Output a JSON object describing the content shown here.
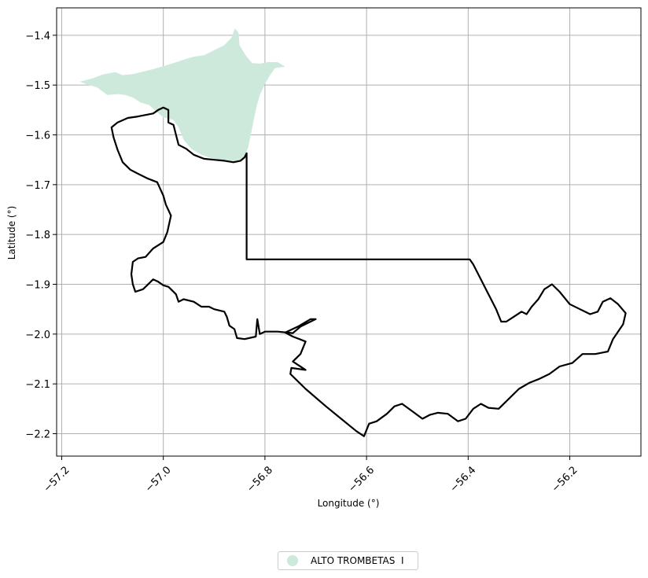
{
  "chart_data": {
    "type": "map",
    "xlabel": "Longitude (°)",
    "ylabel": "Latitude (°)",
    "xlim": [
      -57.21,
      -56.06
    ],
    "ylim": [
      -2.245,
      -1.345
    ],
    "xticks": [
      -57.2,
      -57.0,
      -56.8,
      -56.6,
      -56.4,
      -56.2
    ],
    "xtick_labels": [
      "−57.2",
      "−57.0",
      "−56.8",
      "−56.6",
      "−56.4",
      "−56.2"
    ],
    "yticks": [
      -1.4,
      -1.5,
      -1.6,
      -1.7,
      -1.8,
      -1.9,
      -2.0,
      -2.1,
      -2.2
    ],
    "ytick_labels": [
      "−1.4",
      "−1.5",
      "−1.6",
      "−1.7",
      "−1.8",
      "−1.9",
      "−2.0",
      "−2.1",
      "−2.2"
    ],
    "grid": true,
    "legend_position": "bottom-center",
    "layers": [
      {
        "name": "ALTO TROMBETAS  I",
        "kind": "filled-area",
        "color": "#cde9db",
        "coords": [
          [
            -57.164,
            -1.493
          ],
          [
            -57.14,
            -1.487
          ],
          [
            -57.12,
            -1.479
          ],
          [
            -57.095,
            -1.474
          ],
          [
            -57.08,
            -1.48
          ],
          [
            -57.06,
            -1.478
          ],
          [
            -57.04,
            -1.473
          ],
          [
            -57.02,
            -1.468
          ],
          [
            -57.0,
            -1.462
          ],
          [
            -56.98,
            -1.456
          ],
          [
            -56.96,
            -1.449
          ],
          [
            -56.94,
            -1.443
          ],
          [
            -56.92,
            -1.44
          ],
          [
            -56.9,
            -1.43
          ],
          [
            -56.88,
            -1.42
          ],
          [
            -56.866,
            -1.405
          ],
          [
            -56.859,
            -1.386
          ],
          [
            -56.852,
            -1.395
          ],
          [
            -56.85,
            -1.42
          ],
          [
            -56.838,
            -1.44
          ],
          [
            -56.825,
            -1.456
          ],
          [
            -56.81,
            -1.457
          ],
          [
            -56.795,
            -1.454
          ],
          [
            -56.775,
            -1.454
          ],
          [
            -56.76,
            -1.463
          ],
          [
            -56.78,
            -1.466
          ],
          [
            -56.79,
            -1.48
          ],
          [
            -56.8,
            -1.498
          ],
          [
            -56.81,
            -1.52
          ],
          [
            -56.817,
            -1.545
          ],
          [
            -56.822,
            -1.57
          ],
          [
            -56.827,
            -1.595
          ],
          [
            -56.833,
            -1.625
          ],
          [
            -56.838,
            -1.638
          ],
          [
            -56.84,
            -1.645
          ],
          [
            -56.85,
            -1.65
          ],
          [
            -56.868,
            -1.655
          ],
          [
            -56.885,
            -1.65
          ],
          [
            -56.905,
            -1.647
          ],
          [
            -56.925,
            -1.64
          ],
          [
            -56.945,
            -1.628
          ],
          [
            -56.96,
            -1.61
          ],
          [
            -56.97,
            -1.585
          ],
          [
            -56.98,
            -1.57
          ],
          [
            -57.0,
            -1.565
          ],
          [
            -57.015,
            -1.552
          ],
          [
            -57.028,
            -1.54
          ],
          [
            -57.045,
            -1.535
          ],
          [
            -57.06,
            -1.525
          ],
          [
            -57.075,
            -1.52
          ],
          [
            -57.09,
            -1.518
          ],
          [
            -57.11,
            -1.52
          ],
          [
            -57.13,
            -1.505
          ],
          [
            -57.155,
            -1.497
          ],
          [
            -57.164,
            -1.493
          ]
        ]
      },
      {
        "name": "boundary",
        "kind": "outline",
        "color": "#000000",
        "coords": [
          [
            -56.836,
            -1.637
          ],
          [
            -56.836,
            -1.85
          ],
          [
            -56.397,
            -1.85
          ],
          [
            -56.39,
            -1.86
          ],
          [
            -56.375,
            -1.89
          ],
          [
            -56.36,
            -1.92
          ],
          [
            -56.345,
            -1.95
          ],
          [
            -56.335,
            -1.975
          ],
          [
            -56.325,
            -1.975
          ],
          [
            -56.31,
            -1.965
          ],
          [
            -56.295,
            -1.955
          ],
          [
            -56.285,
            -1.96
          ],
          [
            -56.275,
            -1.945
          ],
          [
            -56.262,
            -1.93
          ],
          [
            -56.25,
            -1.91
          ],
          [
            -56.235,
            -1.9
          ],
          [
            -56.22,
            -1.915
          ],
          [
            -56.2,
            -1.94
          ],
          [
            -56.18,
            -1.95
          ],
          [
            -56.16,
            -1.96
          ],
          [
            -56.145,
            -1.955
          ],
          [
            -56.135,
            -1.935
          ],
          [
            -56.12,
            -1.928
          ],
          [
            -56.105,
            -1.94
          ],
          [
            -56.09,
            -1.958
          ],
          [
            -56.095,
            -1.98
          ],
          [
            -56.115,
            -2.01
          ],
          [
            -56.125,
            -2.035
          ],
          [
            -56.15,
            -2.04
          ],
          [
            -56.175,
            -2.04
          ],
          [
            -56.195,
            -2.058
          ],
          [
            -56.22,
            -2.065
          ],
          [
            -56.24,
            -2.08
          ],
          [
            -56.26,
            -2.09
          ],
          [
            -56.28,
            -2.098
          ],
          [
            -56.3,
            -2.11
          ],
          [
            -56.32,
            -2.13
          ],
          [
            -56.34,
            -2.15
          ],
          [
            -56.36,
            -2.148
          ],
          [
            -56.375,
            -2.14
          ],
          [
            -56.39,
            -2.15
          ],
          [
            -56.405,
            -2.17
          ],
          [
            -56.42,
            -2.175
          ],
          [
            -56.44,
            -2.16
          ],
          [
            -56.46,
            -2.158
          ],
          [
            -56.475,
            -2.162
          ],
          [
            -56.49,
            -2.17
          ],
          [
            -56.51,
            -2.155
          ],
          [
            -56.53,
            -2.14
          ],
          [
            -56.545,
            -2.145
          ],
          [
            -56.56,
            -2.16
          ],
          [
            -56.58,
            -2.175
          ],
          [
            -56.595,
            -2.18
          ],
          [
            -56.605,
            -2.205
          ],
          [
            -56.62,
            -2.195
          ],
          [
            -56.65,
            -2.17
          ],
          [
            -56.68,
            -2.145
          ],
          [
            -56.72,
            -2.11
          ],
          [
            -56.75,
            -2.08
          ],
          [
            -56.748,
            -2.068
          ],
          [
            -56.72,
            -2.072
          ],
          [
            -56.745,
            -2.055
          ],
          [
            -56.73,
            -2.04
          ],
          [
            -56.72,
            -2.015
          ],
          [
            -56.745,
            -2.005
          ],
          [
            -56.76,
            -1.997
          ],
          [
            -56.735,
            -1.985
          ],
          [
            -56.71,
            -1.97
          ],
          [
            -56.7,
            -1.97
          ],
          [
            -56.73,
            -1.985
          ],
          [
            -56.745,
            -1.998
          ],
          [
            -56.775,
            -1.995
          ],
          [
            -56.8,
            -1.995
          ],
          [
            -56.81,
            -2.0
          ],
          [
            -56.815,
            -1.97
          ],
          [
            -56.818,
            -2.005
          ],
          [
            -56.84,
            -2.01
          ],
          [
            -56.855,
            -2.008
          ],
          [
            -56.86,
            -1.99
          ],
          [
            -56.87,
            -1.983
          ],
          [
            -56.875,
            -1.965
          ],
          [
            -56.88,
            -1.955
          ],
          [
            -56.9,
            -1.95
          ],
          [
            -56.91,
            -1.945
          ],
          [
            -56.925,
            -1.945
          ],
          [
            -56.94,
            -1.935
          ],
          [
            -56.96,
            -1.93
          ],
          [
            -56.97,
            -1.935
          ],
          [
            -56.975,
            -1.92
          ],
          [
            -56.985,
            -1.91
          ],
          [
            -56.99,
            -1.905
          ],
          [
            -57.0,
            -1.902
          ],
          [
            -57.01,
            -1.895
          ],
          [
            -57.02,
            -1.89
          ],
          [
            -57.035,
            -1.905
          ],
          [
            -57.04,
            -1.91
          ],
          [
            -57.055,
            -1.915
          ],
          [
            -57.06,
            -1.9
          ],
          [
            -57.063,
            -1.88
          ],
          [
            -57.06,
            -1.855
          ],
          [
            -57.05,
            -1.848
          ],
          [
            -57.035,
            -1.845
          ],
          [
            -57.02,
            -1.828
          ],
          [
            -57.0,
            -1.815
          ],
          [
            -56.992,
            -1.795
          ],
          [
            -56.985,
            -1.762
          ],
          [
            -56.995,
            -1.74
          ],
          [
            -57.0,
            -1.722
          ],
          [
            -57.012,
            -1.695
          ],
          [
            -57.03,
            -1.688
          ],
          [
            -57.05,
            -1.678
          ],
          [
            -57.065,
            -1.67
          ],
          [
            -57.08,
            -1.655
          ],
          [
            -57.09,
            -1.63
          ],
          [
            -57.098,
            -1.605
          ],
          [
            -57.102,
            -1.585
          ],
          [
            -57.09,
            -1.575
          ],
          [
            -57.07,
            -1.566
          ],
          [
            -57.05,
            -1.563
          ],
          [
            -57.035,
            -1.56
          ],
          [
            -57.02,
            -1.557
          ],
          [
            -57.01,
            -1.55
          ],
          [
            -57.0,
            -1.545
          ],
          [
            -56.99,
            -1.55
          ],
          [
            -56.99,
            -1.575
          ],
          [
            -56.98,
            -1.58
          ],
          [
            -56.975,
            -1.6
          ],
          [
            -56.97,
            -1.62
          ],
          [
            -56.955,
            -1.628
          ],
          [
            -56.94,
            -1.64
          ],
          [
            -56.92,
            -1.648
          ],
          [
            -56.9,
            -1.65
          ],
          [
            -56.88,
            -1.652
          ],
          [
            -56.862,
            -1.655
          ],
          [
            -56.848,
            -1.652
          ],
          [
            -56.84,
            -1.645
          ],
          [
            -56.836,
            -1.637
          ]
        ]
      }
    ]
  },
  "legend": {
    "items": [
      {
        "label": "ALTO TROMBETAS  I",
        "color": "#cde9db"
      }
    ]
  }
}
